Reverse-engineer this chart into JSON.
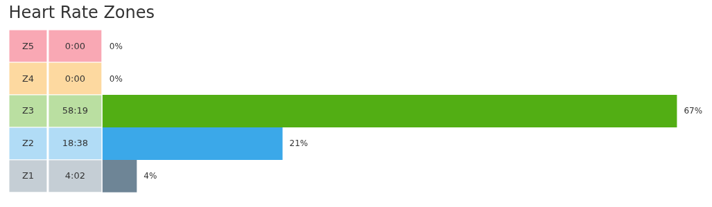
{
  "chart_data": {
    "type": "bar",
    "orientation": "horizontal",
    "title": "Heart Rate Zones",
    "categories": [
      "Z5",
      "Z4",
      "Z3",
      "Z2",
      "Z1"
    ],
    "values": [
      0,
      0,
      67,
      21,
      4
    ],
    "value_labels": [
      "0%",
      "0%",
      "67%",
      "21%",
      "4%"
    ],
    "colors": [
      "#f02543",
      "#faa012",
      "#52ae14",
      "#3ba8e9",
      "#6e8596"
    ],
    "annotations": [
      "0:00",
      "0:00",
      "58:19",
      "18:38",
      "4:02"
    ]
  }
}
